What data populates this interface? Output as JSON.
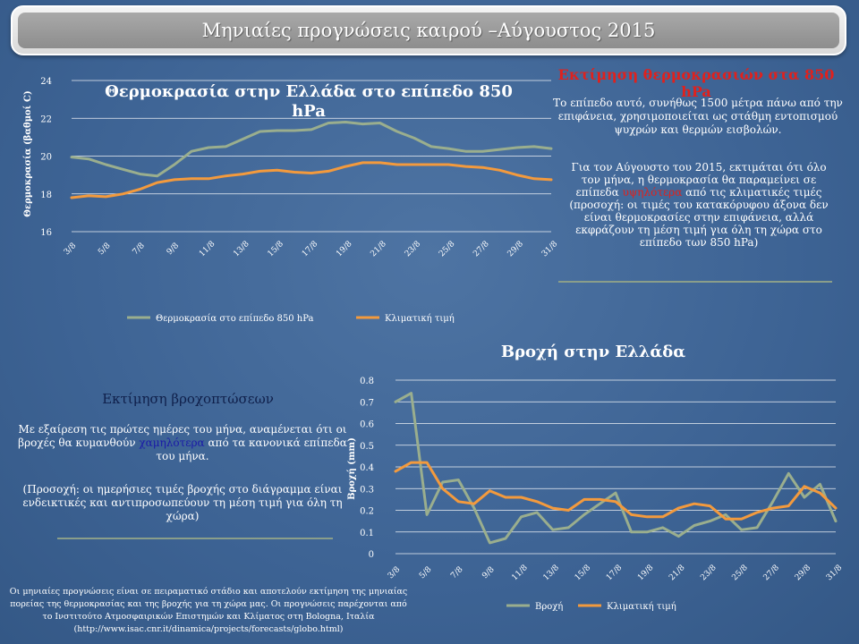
{
  "header": {
    "title": "Μηνιαίες προγνώσεις καιρού –Αύγουστος 2015"
  },
  "colors": {
    "series_main": "#9aae8e",
    "series_climate": "#f39a3d",
    "grid": "#ffffff",
    "accent_red": "#e0211d",
    "accent_blue": "#1a1aa8"
  },
  "temp_panel": {
    "heading": "Εκτίμηση θερμοκρασιών στα 850 hPa",
    "p1": "Το επίπεδο αυτό, συνήθως 1500 μέτρα πάνω από την επιφάνεια, χρησιμοποιείται ως στάθμη εντοπισμού ψυχρών και θερμών εισβολών.",
    "p2_a": "Για τον Αύγουστο του 2015, εκτιμάται ότι όλο τον μήνα, η θερμοκρασία θα παραμείνει σε επίπεδα",
    "p2_b": "υψηλότερα",
    "p2_c": "από τις κλιματικές τιμές",
    "p2_d": "(προσοχή: οι τιμές του κατακόρυφου άξονα δεν είναι θερμοκρασίες στην επιφάνεια, αλλά εκφράζουν τη μέση τιμή για όλη τη χώρα στο επίπεδο των 850 hPa)"
  },
  "rain_panel": {
    "heading": "Εκτίμηση βροχοπτώσεων",
    "p1_a": "Με εξαίρεση τις πρώτες ημέρες του μήνα, αναμένεται ότι οι βροχές θα κυμανθούν",
    "p1_b": "χαμηλότερα",
    "p1_c": "από τα κανονικά επίπεδα του μήνα.",
    "p2": "(Προσοχή: οι ημερήσιες τιμές βροχής στο διάγραμμα είναι ενδεικτικές και αντιπροσωπεύουν τη μέση τιμή για όλη τη χώρα)"
  },
  "footer": {
    "text": "Οι μηνιαίες προγνώσεις είναι σε πειραματικό στάδιο και αποτελούν εκτίμηση της μηνιαίας πορείας της θερμοκρασίας και της βροχής για τη χώρα μας. Οι προγνώσεις παρέχονται από το Ινστιτούτο Ατμοσφαιρικών Επιστημών και Κλίματος στη Bologna, Ιταλία (http://www.isac.cnr.it/dinamica/projects/forecasts/globo.html)"
  },
  "chart_data": [
    {
      "type": "line",
      "title": "Θερμοκρασία στην Ελλάδα στο επίπεδο 850 hPa",
      "ylabel": "Θερμοκρασία (βαθμοί C)",
      "xlabel": "",
      "ylim": [
        16,
        24
      ],
      "yticks": [
        16,
        18,
        20,
        22,
        24
      ],
      "x": [
        "3/8",
        "4/8",
        "5/8",
        "6/8",
        "7/8",
        "8/8",
        "9/8",
        "10/8",
        "11/8",
        "12/8",
        "13/8",
        "14/8",
        "15/8",
        "16/8",
        "17/8",
        "18/8",
        "19/8",
        "20/8",
        "21/8",
        "22/8",
        "23/8",
        "24/8",
        "25/8",
        "26/8",
        "27/8",
        "28/8",
        "29/8",
        "30/8",
        "31/8"
      ],
      "xtick_labels": [
        "3/8",
        "5/8",
        "7/8",
        "9/8",
        "11/8",
        "13/8",
        "15/8",
        "17/8",
        "19/8",
        "21/8",
        "23/8",
        "25/8",
        "27/8",
        "29/8",
        "31/8"
      ],
      "grid": true,
      "legend": "bottom",
      "series": [
        {
          "name": "Θερμοκρασία στο επίπεδο 850 hPa",
          "values": [
            19.95,
            19.85,
            19.55,
            19.3,
            19.05,
            18.95,
            19.55,
            20.25,
            20.45,
            20.5,
            20.9,
            21.3,
            21.35,
            21.35,
            21.4,
            21.75,
            21.8,
            21.7,
            21.75,
            21.3,
            20.95,
            20.5,
            20.4,
            20.25,
            20.25,
            20.35,
            20.45,
            20.5,
            20.4
          ]
        },
        {
          "name": "Κλιματική τιμή",
          "values": [
            17.8,
            17.9,
            17.85,
            18.0,
            18.25,
            18.6,
            18.75,
            18.8,
            18.8,
            18.95,
            19.05,
            19.2,
            19.25,
            19.15,
            19.1,
            19.2,
            19.45,
            19.65,
            19.65,
            19.55,
            19.55,
            19.55,
            19.55,
            19.45,
            19.4,
            19.25,
            19.0,
            18.8,
            18.75
          ]
        }
      ]
    },
    {
      "type": "line",
      "title": "Βροχή στην Ελλάδα",
      "ylabel": "Βροχή (mm)",
      "xlabel": "",
      "ylim": [
        0,
        0.8
      ],
      "yticks": [
        0,
        0.1,
        0.2,
        0.3,
        0.4,
        0.5,
        0.6,
        0.7,
        0.8
      ],
      "x": [
        "3/8",
        "4/8",
        "5/8",
        "6/8",
        "7/8",
        "8/8",
        "9/8",
        "10/8",
        "11/8",
        "12/8",
        "13/8",
        "14/8",
        "15/8",
        "16/8",
        "17/8",
        "18/8",
        "19/8",
        "20/8",
        "21/8",
        "22/8",
        "23/8",
        "24/8",
        "25/8",
        "26/8",
        "27/8",
        "28/8",
        "29/8",
        "30/8",
        "31/8"
      ],
      "xtick_labels": [
        "3/8",
        "5/8",
        "7/8",
        "9/8",
        "11/8",
        "13/8",
        "15/8",
        "17/8",
        "19/8",
        "21/8",
        "23/8",
        "25/8",
        "27/8",
        "29/8",
        "31/8"
      ],
      "grid": true,
      "legend": "bottom",
      "series": [
        {
          "name": "Βροχή",
          "values": [
            0.7,
            0.74,
            0.18,
            0.33,
            0.34,
            0.21,
            0.05,
            0.07,
            0.17,
            0.19,
            0.11,
            0.12,
            0.18,
            0.23,
            0.28,
            0.1,
            0.1,
            0.12,
            0.08,
            0.13,
            0.15,
            0.18,
            0.11,
            0.12,
            0.24,
            0.37,
            0.26,
            0.32,
            0.15
          ]
        },
        {
          "name": "Κλιματική τιμή",
          "values": [
            0.38,
            0.42,
            0.42,
            0.3,
            0.24,
            0.23,
            0.29,
            0.26,
            0.26,
            0.24,
            0.21,
            0.2,
            0.25,
            0.25,
            0.24,
            0.18,
            0.17,
            0.17,
            0.21,
            0.23,
            0.22,
            0.16,
            0.16,
            0.19,
            0.21,
            0.22,
            0.31,
            0.28,
            0.21
          ]
        }
      ]
    }
  ]
}
